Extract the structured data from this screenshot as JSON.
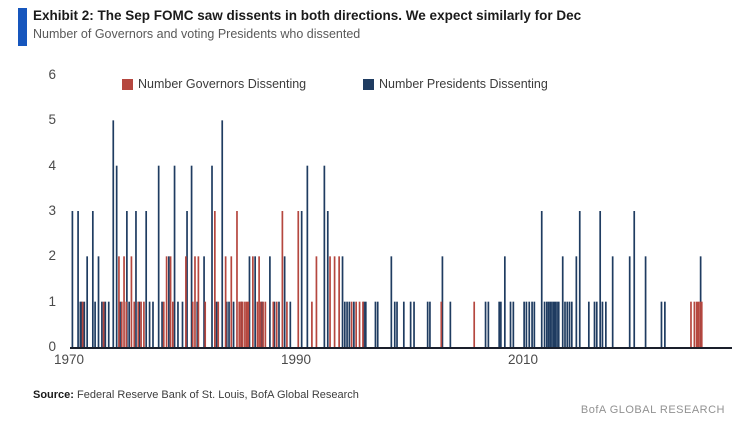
{
  "header": {
    "exhibit_title": "Exhibit 2: The Sep FOMC saw dissents in both directions. We expect similarly for Dec",
    "subtitle": "Number of Governors and voting Presidents who dissented"
  },
  "legend": {
    "governors_label": "Number Governors Dissenting",
    "presidents_label": "Number Presidents Dissenting"
  },
  "colors": {
    "governors": "#b5473f",
    "presidents": "#1f3c61",
    "accent_bar": "#1656bd",
    "axis_line": "#1a1f2b"
  },
  "source": {
    "label": "Source:",
    "text": " Federal Reserve Bank of St. Louis, BofA Global Research"
  },
  "footer": {
    "brand": "BofA GLOBAL RESEARCH"
  },
  "chart_data": {
    "type": "bar",
    "title": "Number of Governors and voting Presidents who dissented",
    "xlabel": "",
    "ylabel": "",
    "x_axis": {
      "range": [
        1969.8,
        2028.3
      ],
      "ticks": [
        1970,
        1990,
        2010
      ]
    },
    "y_axis": {
      "range": [
        0,
        6
      ],
      "ticks": [
        0,
        1,
        2,
        3,
        4,
        5,
        6
      ]
    },
    "grid": false,
    "legend_position": "top",
    "series": [
      {
        "name": "Number Presidents Dissenting",
        "color": "#1f3c61",
        "points": [
          [
            1970.3,
            3
          ],
          [
            1970.8,
            3
          ],
          [
            1971.0,
            1
          ],
          [
            1971.1,
            1
          ],
          [
            1971.35,
            1
          ],
          [
            1971.6,
            2
          ],
          [
            1972.1,
            3
          ],
          [
            1972.3,
            1
          ],
          [
            1972.6,
            2
          ],
          [
            1972.9,
            1
          ],
          [
            1973.2,
            1
          ],
          [
            1973.5,
            1
          ],
          [
            1973.9,
            5
          ],
          [
            1974.2,
            4
          ],
          [
            1974.5,
            1
          ],
          [
            1975.1,
            3
          ],
          [
            1975.3,
            1
          ],
          [
            1975.9,
            3
          ],
          [
            1976.2,
            1
          ],
          [
            1976.8,
            3
          ],
          [
            1977.1,
            1
          ],
          [
            1977.4,
            1
          ],
          [
            1977.9,
            4
          ],
          [
            1978.2,
            1
          ],
          [
            1978.8,
            2
          ],
          [
            1979.3,
            4
          ],
          [
            1979.6,
            1
          ],
          [
            1980.0,
            1
          ],
          [
            1980.4,
            3
          ],
          [
            1980.8,
            4
          ],
          [
            1981.3,
            1
          ],
          [
            1981.9,
            2
          ],
          [
            1982.6,
            4
          ],
          [
            1983.0,
            1
          ],
          [
            1983.5,
            5
          ],
          [
            1983.9,
            1
          ],
          [
            1984.1,
            1
          ],
          [
            1984.5,
            1
          ],
          [
            1985.2,
            1
          ],
          [
            1985.9,
            2
          ],
          [
            1986.4,
            2
          ],
          [
            1987.0,
            1
          ],
          [
            1987.7,
            2
          ],
          [
            1988.1,
            1
          ],
          [
            1988.5,
            1
          ],
          [
            1989.0,
            2
          ],
          [
            1989.5,
            1
          ],
          [
            1990.5,
            3
          ],
          [
            1991.0,
            4
          ],
          [
            1992.5,
            4
          ],
          [
            1992.8,
            3
          ],
          [
            1994.1,
            2
          ],
          [
            1994.3,
            1
          ],
          [
            1994.5,
            1
          ],
          [
            1994.7,
            1
          ],
          [
            1995.1,
            1
          ],
          [
            1996.0,
            1
          ],
          [
            1996.15,
            1
          ],
          [
            1997.0,
            1
          ],
          [
            1997.2,
            1
          ],
          [
            1998.4,
            2
          ],
          [
            1998.7,
            1
          ],
          [
            1998.9,
            1
          ],
          [
            1999.5,
            1
          ],
          [
            2000.1,
            1
          ],
          [
            2000.4,
            1
          ],
          [
            2001.6,
            1
          ],
          [
            2001.8,
            1
          ],
          [
            2002.9,
            2
          ],
          [
            2003.6,
            1
          ],
          [
            2006.7,
            1
          ],
          [
            2006.95,
            1
          ],
          [
            2007.9,
            1
          ],
          [
            2008.05,
            1
          ],
          [
            2008.4,
            2
          ],
          [
            2008.9,
            1
          ],
          [
            2009.15,
            1
          ],
          [
            2010.1,
            1
          ],
          [
            2010.3,
            1
          ],
          [
            2010.55,
            1
          ],
          [
            2010.8,
            1
          ],
          [
            2011.0,
            1
          ],
          [
            2011.65,
            3
          ],
          [
            2011.9,
            1
          ],
          [
            2012.1,
            1
          ],
          [
            2012.25,
            1
          ],
          [
            2012.4,
            1
          ],
          [
            2012.55,
            1
          ],
          [
            2012.7,
            1
          ],
          [
            2012.85,
            1
          ],
          [
            2013.0,
            1
          ],
          [
            2013.15,
            1
          ],
          [
            2013.5,
            2
          ],
          [
            2013.7,
            1
          ],
          [
            2013.9,
            1
          ],
          [
            2014.1,
            1
          ],
          [
            2014.3,
            1
          ],
          [
            2014.7,
            2
          ],
          [
            2015.0,
            3
          ],
          [
            2015.8,
            1
          ],
          [
            2016.3,
            1
          ],
          [
            2016.5,
            1
          ],
          [
            2016.8,
            3
          ],
          [
            2017.0,
            1
          ],
          [
            2017.3,
            1
          ],
          [
            2017.9,
            2
          ],
          [
            2019.4,
            2
          ],
          [
            2019.8,
            3
          ],
          [
            2020.8,
            2
          ],
          [
            2022.2,
            1
          ],
          [
            2022.5,
            1
          ],
          [
            2025.65,
            2
          ]
        ]
      },
      {
        "name": "Number Governors Dissenting",
        "color": "#b5473f",
        "points": [
          [
            1971.2,
            1
          ],
          [
            1973.05,
            1
          ],
          [
            1974.4,
            2
          ],
          [
            1974.65,
            1
          ],
          [
            1974.85,
            2
          ],
          [
            1975.05,
            1
          ],
          [
            1975.5,
            2
          ],
          [
            1975.75,
            1
          ],
          [
            1976.1,
            1
          ],
          [
            1976.35,
            1
          ],
          [
            1976.6,
            1
          ],
          [
            1978.35,
            1
          ],
          [
            1978.6,
            2
          ],
          [
            1978.95,
            2
          ],
          [
            1979.15,
            1
          ],
          [
            1980.3,
            2
          ],
          [
            1980.9,
            1
          ],
          [
            1981.1,
            2
          ],
          [
            1981.4,
            2
          ],
          [
            1982.0,
            1
          ],
          [
            1982.85,
            3
          ],
          [
            1983.15,
            1
          ],
          [
            1983.8,
            2
          ],
          [
            1984.3,
            2
          ],
          [
            1984.8,
            3
          ],
          [
            1985.0,
            1
          ],
          [
            1985.15,
            1
          ],
          [
            1985.3,
            1
          ],
          [
            1985.5,
            1
          ],
          [
            1985.65,
            1
          ],
          [
            1985.8,
            1
          ],
          [
            1986.2,
            2
          ],
          [
            1986.6,
            1
          ],
          [
            1986.75,
            2
          ],
          [
            1986.9,
            1
          ],
          [
            1987.1,
            1
          ],
          [
            1987.3,
            1
          ],
          [
            1988.0,
            1
          ],
          [
            1988.3,
            1
          ],
          [
            1988.8,
            3
          ],
          [
            1989.2,
            1
          ],
          [
            1990.2,
            3
          ],
          [
            1991.4,
            1
          ],
          [
            1991.8,
            2
          ],
          [
            1993.0,
            2
          ],
          [
            1993.4,
            2
          ],
          [
            1993.8,
            2
          ],
          [
            1994.9,
            1
          ],
          [
            1995.3,
            1
          ],
          [
            1995.6,
            1
          ],
          [
            1995.9,
            1
          ],
          [
            2002.8,
            1
          ],
          [
            2005.7,
            1
          ],
          [
            2024.8,
            1
          ],
          [
            2025.1,
            1
          ],
          [
            2025.3,
            1
          ],
          [
            2025.45,
            1
          ],
          [
            2025.6,
            1
          ],
          [
            2025.75,
            1
          ]
        ]
      }
    ]
  }
}
